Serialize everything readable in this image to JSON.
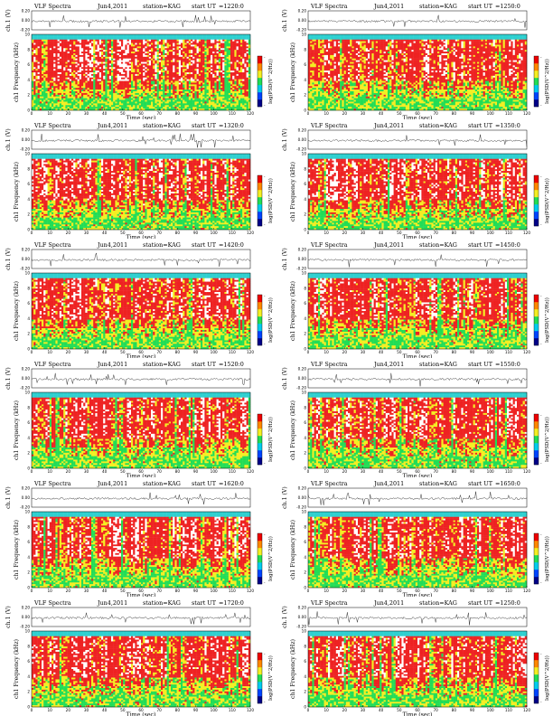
{
  "chart_data": {
    "type": "heatmap",
    "figure": "VLF Spectra",
    "station_label": "station=KAG",
    "date_label": "Jun4,2011",
    "start_label": "start UT",
    "xlabel": "Time (sec)",
    "ylabel_freq": "ch1 Frequency (kHz)",
    "ylabel_ch": "ch.1 (V)",
    "colorbar_label": "log(PSD(V^2/Hz))",
    "x_ticks": [
      "0",
      "10",
      "20",
      "30",
      "40",
      "50",
      "60",
      "70",
      "80",
      "90",
      "100",
      "110",
      "120"
    ],
    "xlim": [
      0,
      120
    ],
    "freq_ticks": [
      "0",
      "2",
      "4",
      "6",
      "8",
      "10"
    ],
    "ylim_freq": [
      0,
      10
    ],
    "ch_ticks": [
      "0.20",
      "0.00",
      "-0.20"
    ],
    "ylim_ch": [
      -0.2,
      0.2
    ],
    "colorbar_ticks": [
      "-",
      "-"
    ],
    "panels": [
      {
        "start_ut": "=1220:0"
      },
      {
        "start_ut": "=1250:0"
      },
      {
        "start_ut": "=1320:0"
      },
      {
        "start_ut": "=1350:0"
      },
      {
        "start_ut": "=1420:0"
      },
      {
        "start_ut": "=1450:0"
      },
      {
        "start_ut": "=1520:0"
      },
      {
        "start_ut": "=1550:0"
      },
      {
        "start_ut": "=1620:0"
      },
      {
        "start_ut": "=1650:0"
      },
      {
        "start_ut": "=1720:0"
      },
      {
        "start_ut": "=1250:0"
      }
    ],
    "colors": {
      "band_top": "#2fd0d0",
      "low": "#22dd55",
      "mid": "#f4ee22",
      "high": "#ee2222",
      "peak": "#ffffff",
      "colorbar_low": "#000088",
      "colorbar_high": "#ee0000"
    }
  }
}
